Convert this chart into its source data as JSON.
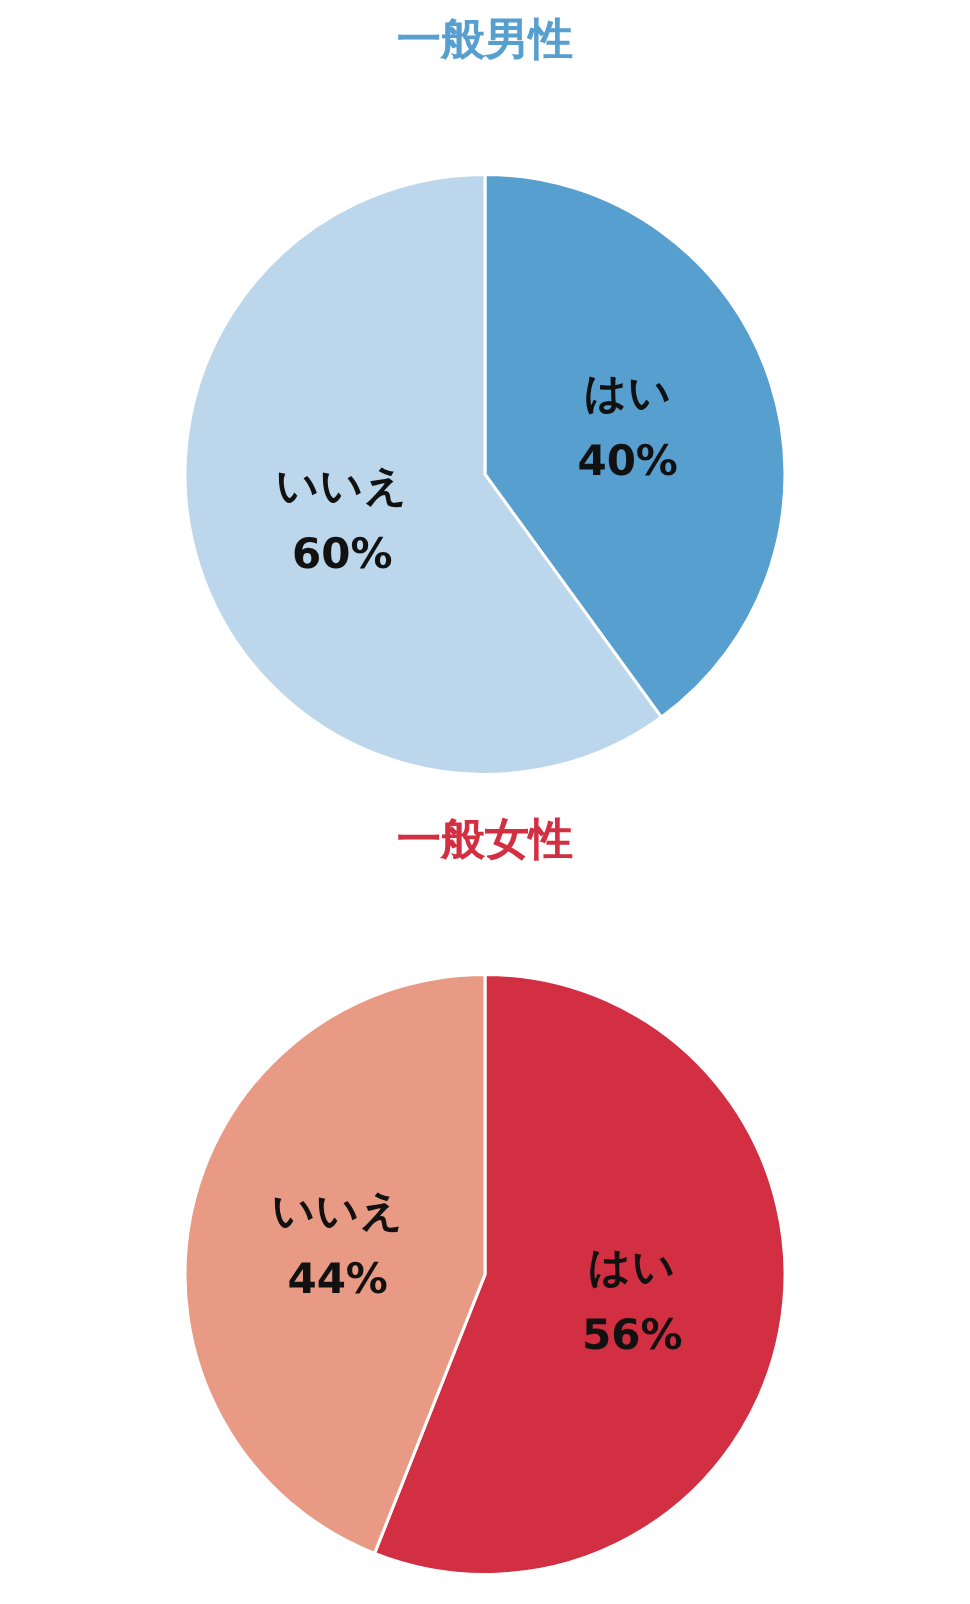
{
  "chart_data": [
    {
      "type": "pie",
      "title": "一般男性",
      "categories": [
        "はい",
        "いいえ"
      ],
      "values": [
        40,
        60
      ],
      "colors": [
        "#579fcf",
        "#bcd7ec"
      ],
      "value_labels": [
        "40%",
        "60%"
      ]
    },
    {
      "type": "pie",
      "title": "一般女性",
      "categories": [
        "はい",
        "いいえ"
      ],
      "values": [
        56,
        44
      ],
      "colors": [
        "#d32f42",
        "#e89a85"
      ],
      "value_labels": [
        "56%",
        "44%"
      ]
    }
  ]
}
